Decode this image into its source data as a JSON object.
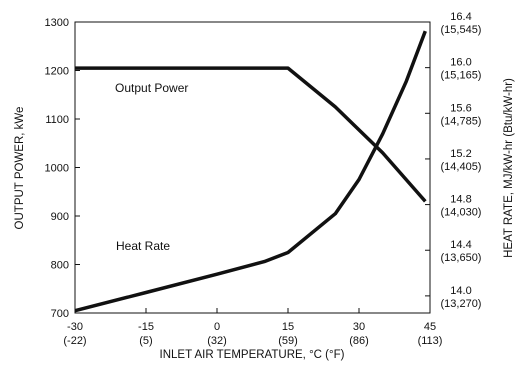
{
  "chart_data": {
    "type": "line",
    "xlabel": "INLET AIR TEMPERATURE,  °C (°F)",
    "ylabel_left": "OUTPUT POWER, kWe",
    "ylabel_right": "HEAT RATE, MJ/kW-hr (Btu/kW-hr)",
    "xlim": [
      -30,
      45
    ],
    "ylim_left": [
      700,
      1300
    ],
    "ylim_right": [
      13.85,
      16.4
    ],
    "grid": false,
    "x_ticks": [
      {
        "c": -30,
        "label": "-30",
        "label2": "(-22)"
      },
      {
        "c": -15,
        "label": "-15",
        "label2": "(5)"
      },
      {
        "c": 0,
        "label": "0",
        "label2": "(32)"
      },
      {
        "c": 15,
        "label": "15",
        "label2": "(59)"
      },
      {
        "c": 30,
        "label": "30",
        "label2": "(86)"
      },
      {
        "c": 45,
        "label": "45",
        "label2": "(113)"
      }
    ],
    "y_ticks_left": [
      {
        "v": 700,
        "label": "700"
      },
      {
        "v": 800,
        "label": "800"
      },
      {
        "v": 900,
        "label": "900"
      },
      {
        "v": 1000,
        "label": "1000"
      },
      {
        "v": 1100,
        "label": "1100"
      },
      {
        "v": 1200,
        "label": "1200"
      },
      {
        "v": 1300,
        "label": "1300"
      }
    ],
    "y_ticks_right": [
      {
        "v": 14.0,
        "label": "14.0",
        "label2": "(13,270)"
      },
      {
        "v": 14.4,
        "label": "14.4",
        "label2": "(13,650)"
      },
      {
        "v": 14.8,
        "label": "14.8",
        "label2": "(14,030)"
      },
      {
        "v": 15.2,
        "label": "15.2",
        "label2": "(14,405)"
      },
      {
        "v": 15.6,
        "label": "15.6",
        "label2": "(14,785)"
      },
      {
        "v": 16.0,
        "label": "16.0",
        "label2": "(15,165)"
      },
      {
        "v": 16.4,
        "label": "16.4",
        "label2": "(15,545)"
      }
    ],
    "series": [
      {
        "name": "Output Power",
        "axis": "left",
        "x": [
          -30,
          15,
          25,
          35,
          44
        ],
        "y": [
          1205,
          1205,
          1125,
          1030,
          930
        ]
      },
      {
        "name": "Heat Rate",
        "axis": "right",
        "x": [
          -30,
          -15,
          0,
          10,
          15,
          25,
          30,
          35,
          40,
          44
        ],
        "y": [
          13.87,
          14.03,
          14.19,
          14.3,
          14.38,
          14.72,
          15.02,
          15.42,
          15.88,
          16.32
        ]
      }
    ]
  }
}
